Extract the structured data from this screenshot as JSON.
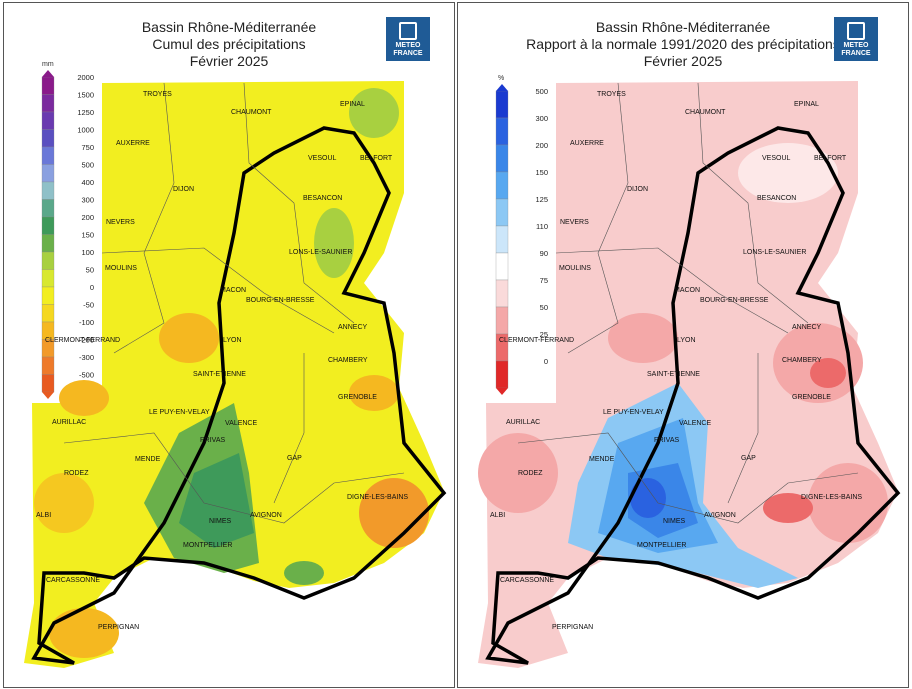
{
  "left": {
    "title_line1": "Bassin Rhône-Méditerranée",
    "title_line2": "Cumul des précipitations",
    "title_line3": "Février 2025",
    "unit": "mm",
    "legend": [
      {
        "label": "2000",
        "color": "#8a1a8a"
      },
      {
        "label": "1500",
        "color": "#7b2a9e"
      },
      {
        "label": "1250",
        "color": "#6a3ab0"
      },
      {
        "label": "1000",
        "color": "#5a4fc0"
      },
      {
        "label": "750",
        "color": "#6a78d8"
      },
      {
        "label": "500",
        "color": "#8aa0e0"
      },
      {
        "label": "400",
        "color": "#8fc0c8"
      },
      {
        "label": "300",
        "color": "#5aa88a"
      },
      {
        "label": "200",
        "color": "#3e9a5a"
      },
      {
        "label": "150",
        "color": "#6ab04a"
      },
      {
        "label": "100",
        "color": "#a8d040"
      },
      {
        "label": "50",
        "color": "#d8e830"
      },
      {
        "label": "0",
        "color": "#f2ee20"
      },
      {
        "label": "-50",
        "color": "#f5d820"
      },
      {
        "label": "-100",
        "color": "#f5b820"
      },
      {
        "label": "-200",
        "color": "#f29a2a"
      },
      {
        "label": "-300",
        "color": "#ee7a2a"
      },
      {
        "label": "-500",
        "color": "#e85a20"
      }
    ]
  },
  "right": {
    "title_line1": "Bassin Rhône-Méditerranée",
    "title_line2": "Rapport à la normale 1991/2020 des précipitations",
    "title_line3": "Février 2025",
    "unit": "%",
    "legend": [
      {
        "label": "500",
        "color": "#1a3ad0"
      },
      {
        "label": "300",
        "color": "#2a62e0"
      },
      {
        "label": "200",
        "color": "#3a86e8"
      },
      {
        "label": "150",
        "color": "#58a8f0"
      },
      {
        "label": "125",
        "color": "#8cc8f4"
      },
      {
        "label": "110",
        "color": "#cce6fa"
      },
      {
        "label": "90",
        "color": "#ffffff"
      },
      {
        "label": "75",
        "color": "#fadada"
      },
      {
        "label": "50",
        "color": "#f4a8a8"
      },
      {
        "label": "25",
        "color": "#ec6a6a"
      },
      {
        "label": "0",
        "color": "#e02828"
      }
    ]
  },
  "logo": {
    "line1": "METEO",
    "line2": "FRANCE"
  },
  "cities": [
    "TROYES",
    "CHAUMONT",
    "EPINAL",
    "AUXERRE",
    "VESOUL",
    "BELFORT",
    "DIJON",
    "BESANCON",
    "NEVERS",
    "LONS-LE-SAUNIER",
    "MOULINS",
    "MACON",
    "BOURG-EN-BRESSE",
    "CLERMONT-FERRAND",
    "ANNECY",
    "LYON",
    "CHAMBERY",
    "SAINT-ETIENNE",
    "GRENOBLE",
    "LE PUY-EN-VELAY",
    "VALENCE",
    "AURILLAC",
    "PRIVAS",
    "RODEZ",
    "MENDE",
    "GAP",
    "DIGNE-LES-BAINS",
    "ALBI",
    "NIMES",
    "AVIGNON",
    "MONTPELLIER",
    "CARCASSONNE",
    "PERPIGNAN"
  ]
}
